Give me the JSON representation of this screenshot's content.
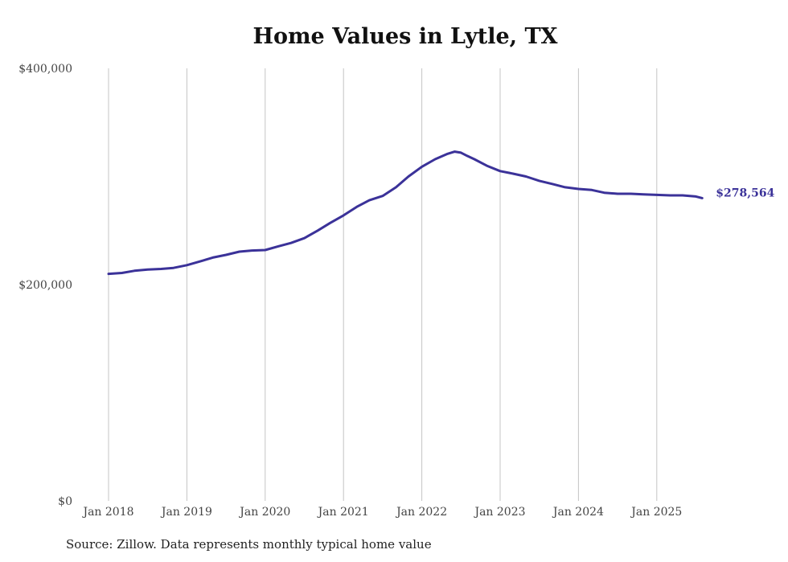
{
  "chart_data": {
    "type": "line",
    "title": "Home Values in Lytle, TX",
    "xlabel": "",
    "ylabel": "",
    "ylim": [
      0,
      400000
    ],
    "y_ticks": [
      {
        "value": 0,
        "label": "$0"
      },
      {
        "value": 200000,
        "label": "$200,000"
      },
      {
        "value": 400000,
        "label": "$400,000"
      }
    ],
    "x_ticks": [
      {
        "value": 2018.0,
        "label": "Jan 2018"
      },
      {
        "value": 2019.0,
        "label": "Jan 2019"
      },
      {
        "value": 2020.0,
        "label": "Jan 2020"
      },
      {
        "value": 2021.0,
        "label": "Jan 2021"
      },
      {
        "value": 2022.0,
        "label": "Jan 2022"
      },
      {
        "value": 2023.0,
        "label": "Jan 2023"
      },
      {
        "value": 2024.0,
        "label": "Jan 2024"
      },
      {
        "value": 2025.0,
        "label": "Jan 2025"
      }
    ],
    "xlim": [
      2017.85,
      2025.85
    ],
    "grid": "vertical",
    "color": "#3b3299",
    "series": [
      {
        "x": [
          2018.0,
          2018.17,
          2018.33,
          2018.5,
          2018.67,
          2018.83,
          2019.0,
          2019.17,
          2019.33,
          2019.5,
          2019.67,
          2019.83,
          2020.0,
          2020.17,
          2020.33,
          2020.5,
          2020.67,
          2020.83,
          2021.0,
          2021.17,
          2021.33,
          2021.5,
          2021.67,
          2021.83,
          2022.0,
          2022.17,
          2022.33,
          2022.42,
          2022.5,
          2022.58,
          2022.67,
          2022.83,
          2023.0,
          2023.17,
          2023.33,
          2023.5,
          2023.67,
          2023.83,
          2024.0,
          2024.17,
          2024.33,
          2024.5,
          2024.67,
          2024.83,
          2025.0,
          2025.17,
          2025.33,
          2025.5,
          2025.58
        ],
        "values": [
          210000,
          210800,
          212800,
          214000,
          214500,
          215500,
          218000,
          221500,
          225000,
          227500,
          230500,
          231500,
          232000,
          235500,
          238500,
          243000,
          250000,
          257000,
          264000,
          272000,
          278000,
          282000,
          290000,
          300000,
          309000,
          316000,
          321000,
          323000,
          322000,
          319000,
          316000,
          310000,
          305000,
          302500,
          300000,
          296000,
          293000,
          290000,
          288500,
          287500,
          285000,
          284000,
          284000,
          283500,
          283000,
          282500,
          282500,
          281500,
          280000
        ]
      }
    ],
    "end_label": "$278,564"
  },
  "footer": {
    "source": "Source: Zillow. Data represents monthly typical home value"
  }
}
